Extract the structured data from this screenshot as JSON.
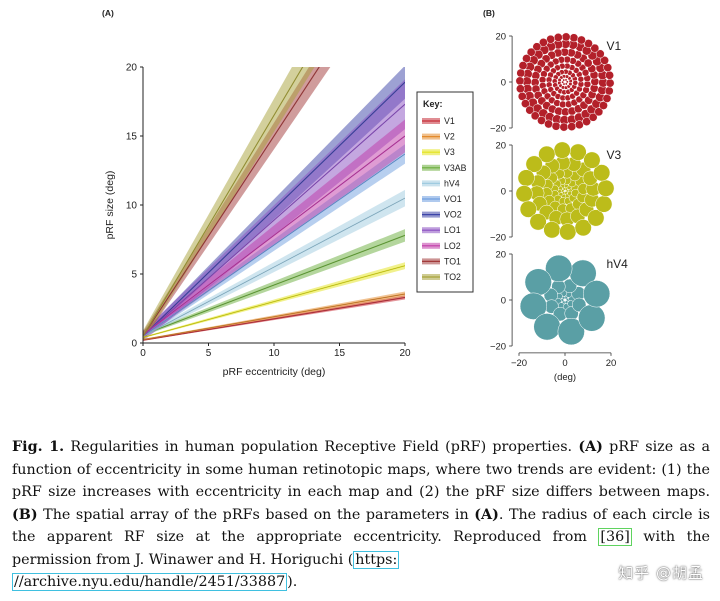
{
  "figure": {
    "panel_a_label": "(A)",
    "panel_b_label": "(B)"
  },
  "chart_data": [
    {
      "type": "line",
      "title": "",
      "xlabel": "pRF eccentricity (deg)",
      "ylabel": "pRF size (deg)",
      "xlim": [
        0,
        20
      ],
      "ylim": [
        0,
        20
      ],
      "xticks": [
        0,
        5,
        10,
        15,
        20
      ],
      "yticks": [
        0,
        5,
        10,
        15,
        20
      ],
      "legend_title": "Key:",
      "legend_position": "right",
      "series": [
        {
          "name": "V1",
          "color": "#c7303a",
          "intercept": 0.2,
          "slope": 0.155,
          "band": 0.15
        },
        {
          "name": "V2",
          "color": "#e38a2b",
          "intercept": 0.25,
          "slope": 0.165,
          "band": 0.18
        },
        {
          "name": "V3",
          "color": "#e3e31c",
          "intercept": 0.4,
          "slope": 0.26,
          "band": 0.25
        },
        {
          "name": "V3AB",
          "color": "#6aad3b",
          "intercept": 0.6,
          "slope": 0.36,
          "band": 0.45
        },
        {
          "name": "hV4",
          "color": "#9fcbe0",
          "intercept": 0.5,
          "slope": 0.5,
          "band": 0.6
        },
        {
          "name": "VO1",
          "color": "#6f9fe0",
          "intercept": 0.5,
          "slope": 0.66,
          "band": 0.7
        },
        {
          "name": "VO2",
          "color": "#3c44a8",
          "intercept": 0.5,
          "slope": 0.92,
          "band": 1.2
        },
        {
          "name": "LO1",
          "color": "#8a4fc1",
          "intercept": 0.5,
          "slope": 0.84,
          "band": 1.8
        },
        {
          "name": "LO2",
          "color": "#c03aa8",
          "intercept": 0.6,
          "slope": 0.72,
          "band": 1.2
        },
        {
          "name": "TO1",
          "color": "#a23a3a",
          "intercept": 0.5,
          "slope": 1.45,
          "band": 1.6
        },
        {
          "name": "TO2",
          "color": "#a8a23a",
          "intercept": 0.5,
          "slope": 1.6,
          "band": 2.0
        }
      ]
    },
    {
      "type": "scatter",
      "title": "V1",
      "xlim": [
        -20,
        20
      ],
      "ylim": [
        -20,
        20
      ],
      "yticks": [
        20,
        0,
        -20
      ],
      "color": "#b3202a",
      "rings": [
        {
          "ecc": 1,
          "n": 6,
          "r": 0.5
        },
        {
          "ecc": 2.5,
          "n": 12,
          "r": 0.8
        },
        {
          "ecc": 4.5,
          "n": 16,
          "r": 1.1
        },
        {
          "ecc": 7,
          "n": 20,
          "r": 1.3
        },
        {
          "ecc": 9.8,
          "n": 24,
          "r": 1.5
        },
        {
          "ecc": 13,
          "n": 28,
          "r": 1.8
        },
        {
          "ecc": 16.6,
          "n": 32,
          "r": 2.0
        },
        {
          "ecc": 19.6,
          "n": 36,
          "r": 1.8
        }
      ]
    },
    {
      "type": "scatter",
      "title": "V3",
      "xlim": [
        -20,
        20
      ],
      "ylim": [
        -20,
        20
      ],
      "yticks": [
        20,
        0,
        -20
      ],
      "color": "#bcbc1a",
      "rings": [
        {
          "ecc": 1,
          "n": 6,
          "r": 0.7
        },
        {
          "ecc": 2.5,
          "n": 10,
          "r": 1.1
        },
        {
          "ecc": 4.6,
          "n": 12,
          "r": 1.7
        },
        {
          "ecc": 8,
          "n": 14,
          "r": 2.4
        },
        {
          "ecc": 12.3,
          "n": 16,
          "r": 3.2
        },
        {
          "ecc": 17.8,
          "n": 16,
          "r": 3.6
        }
      ]
    },
    {
      "type": "scatter",
      "title": "hV4",
      "xlim": [
        -20,
        20
      ],
      "ylim": [
        -20,
        20
      ],
      "yticks": [
        20,
        0,
        -20
      ],
      "xticks": [
        -20,
        0,
        20
      ],
      "xlabel": "(deg)",
      "color": "#5a9fa5",
      "rings": [
        {
          "ecc": 1.2,
          "n": 6,
          "r": 0.7
        },
        {
          "ecc": 3,
          "n": 8,
          "r": 1.4
        },
        {
          "ecc": 6.5,
          "n": 8,
          "r": 3
        },
        {
          "ecc": 14,
          "n": 8,
          "r": 5.8
        }
      ]
    }
  ],
  "caption": {
    "label": "Fig. 1.",
    "t1": " Regularities in human population Receptive Field (pRF) properties. ",
    "a1": "(A)",
    "t2": " pRF size as a function of eccentricity in some human retinotopic maps, where two trends are evident: (1) the pRF size increases with eccentricity in each map and (2) the pRF size differs between maps. ",
    "b1": "(B)",
    "t3": " The spatial array of the pRFs based on the parameters in ",
    "a2": "(A)",
    "t4": ". The radius of each circle is the apparent RF size at the appropriate eccentricity. Reproduced from ",
    "ref": "[36]",
    "t5": " with the permission from J. Winawer and H. Horiguchi (",
    "url1": "https:",
    "url2": "//archive.nyu.edu/handle/2451/33887",
    "t6": ")."
  },
  "watermark": "知乎 @胡孟"
}
